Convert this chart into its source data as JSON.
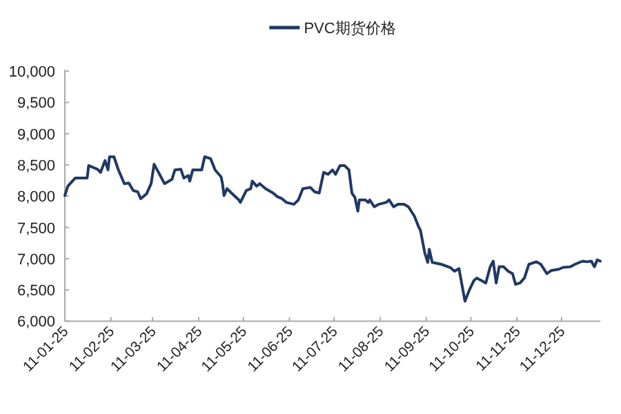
{
  "chart_data": {
    "type": "line",
    "legend": "top",
    "marker": "none",
    "line_style": "solid",
    "xlim": [
      "2011-01-25",
      "2012-01-20"
    ],
    "xticks": [
      {
        "value": "2011-01-25",
        "label": "11-01-25"
      },
      {
        "value": "2011-02-25",
        "label": "11-02-25"
      },
      {
        "value": "2011-03-25",
        "label": "11-03-25"
      },
      {
        "value": "2011-04-25",
        "label": "11-04-25"
      },
      {
        "value": "2011-05-25",
        "label": "11-05-25"
      },
      {
        "value": "2011-06-25",
        "label": "11-06-25"
      },
      {
        "value": "2011-07-25",
        "label": "11-07-25"
      },
      {
        "value": "2011-08-25",
        "label": "11-08-25"
      },
      {
        "value": "2011-09-25",
        "label": "11-09-25"
      },
      {
        "value": "2011-10-25",
        "label": "11-10-25"
      },
      {
        "value": "2011-11-25",
        "label": "11-11-25"
      },
      {
        "value": "2011-12-25",
        "label": "11-12-25"
      }
    ],
    "ylim": [
      6000,
      10000
    ],
    "yticks": [
      {
        "value": 6000,
        "label": "6,000"
      },
      {
        "value": 6500,
        "label": "6,500"
      },
      {
        "value": 7000,
        "label": "7,000"
      },
      {
        "value": 7500,
        "label": "7,500"
      },
      {
        "value": 8000,
        "label": "8,000"
      },
      {
        "value": 8500,
        "label": "8,500"
      },
      {
        "value": 9000,
        "label": "9,000"
      },
      {
        "value": 9500,
        "label": "9,500"
      },
      {
        "value": 10000,
        "label": "10,000"
      }
    ],
    "x": [
      "2011-01-25",
      "2011-01-27",
      "2011-01-30",
      "2011-02-01",
      "2011-02-09",
      "2011-02-10",
      "2011-02-13",
      "2011-02-16",
      "2011-02-18",
      "2011-02-21",
      "2011-02-23",
      "2011-02-24",
      "2011-02-27",
      "2011-03-02",
      "2011-03-06",
      "2011-03-09",
      "2011-03-12",
      "2011-03-15",
      "2011-03-17",
      "2011-03-21",
      "2011-03-24",
      "2011-03-26",
      "2011-03-29",
      "2011-04-02",
      "2011-04-07",
      "2011-04-09",
      "2011-04-13",
      "2011-04-15",
      "2011-04-18",
      "2011-04-19",
      "2011-04-21",
      "2011-04-27",
      "2011-04-29",
      "2011-05-03",
      "2011-05-06",
      "2011-05-10",
      "2011-05-11",
      "2011-05-12",
      "2011-05-14",
      "2011-05-17",
      "2011-05-22",
      "2011-05-23",
      "2011-05-27",
      "2011-05-30",
      "2011-05-31",
      "2011-06-03",
      "2011-06-05",
      "2011-06-09",
      "2011-06-14",
      "2011-06-17",
      "2011-06-20",
      "2011-06-23",
      "2011-06-28",
      "2011-07-01",
      "2011-07-04",
      "2011-07-09",
      "2011-07-12",
      "2011-07-15",
      "2011-07-18",
      "2011-07-21",
      "2011-07-24",
      "2011-07-26",
      "2011-07-29",
      "2011-08-01",
      "2011-08-04",
      "2011-08-06",
      "2011-08-08",
      "2011-08-10",
      "2011-08-11",
      "2011-08-15",
      "2011-08-17",
      "2011-08-18",
      "2011-08-21",
      "2011-08-24",
      "2011-08-29",
      "2011-08-31",
      "2011-09-03",
      "2011-09-06",
      "2011-09-10",
      "2011-09-13",
      "2011-09-17",
      "2011-09-20",
      "2011-09-21",
      "2011-09-24",
      "2011-09-26",
      "2011-09-27",
      "2011-09-29",
      "2011-10-05",
      "2011-10-11",
      "2011-10-14",
      "2011-10-17",
      "2011-10-19",
      "2011-10-21",
      "2011-10-24",
      "2011-10-27",
      "2011-10-29",
      "2011-11-01",
      "2011-11-04",
      "2011-11-07",
      "2011-11-09",
      "2011-11-11",
      "2011-11-13",
      "2011-11-16",
      "2011-11-19",
      "2011-11-22",
      "2011-11-24",
      "2011-11-27",
      "2011-11-30",
      "2011-12-03",
      "2011-12-08",
      "2011-12-11",
      "2011-12-14",
      "2011-12-15",
      "2011-12-18",
      "2011-12-23",
      "2011-12-26",
      "2011-12-31",
      "2012-01-03",
      "2012-01-08",
      "2012-01-11",
      "2012-01-14",
      "2012-01-16",
      "2012-01-18",
      "2012-01-20"
    ],
    "series": [
      {
        "name": "PVC期货价格",
        "color": "#203864",
        "values": [
          8010,
          8160,
          8240,
          8290,
          8290,
          8490,
          8460,
          8430,
          8380,
          8570,
          8420,
          8630,
          8630,
          8420,
          8200,
          8210,
          8090,
          8070,
          7960,
          8040,
          8200,
          8510,
          8380,
          8200,
          8270,
          8420,
          8430,
          8290,
          8330,
          8240,
          8420,
          8420,
          8630,
          8600,
          8420,
          8310,
          8200,
          8010,
          8120,
          8050,
          7940,
          7900,
          8090,
          8120,
          8240,
          8160,
          8200,
          8120,
          8050,
          7990,
          7960,
          7900,
          7870,
          7940,
          8120,
          8140,
          8070,
          8050,
          8380,
          8350,
          8420,
          8350,
          8490,
          8490,
          8420,
          8050,
          7980,
          7760,
          7940,
          7940,
          7900,
          7940,
          7830,
          7870,
          7900,
          7940,
          7830,
          7870,
          7870,
          7830,
          7680,
          7500,
          7460,
          7090,
          6940,
          7150,
          6940,
          6910,
          6860,
          6800,
          6840,
          6580,
          6320,
          6500,
          6650,
          6690,
          6650,
          6610,
          6870,
          6960,
          6610,
          6870,
          6870,
          6800,
          6760,
          6590,
          6610,
          6690,
          6910,
          6950,
          6910,
          6800,
          6760,
          6810,
          6830,
          6860,
          6870,
          6910,
          6960,
          6950,
          6960,
          6870,
          6980,
          6960
        ]
      }
    ]
  }
}
